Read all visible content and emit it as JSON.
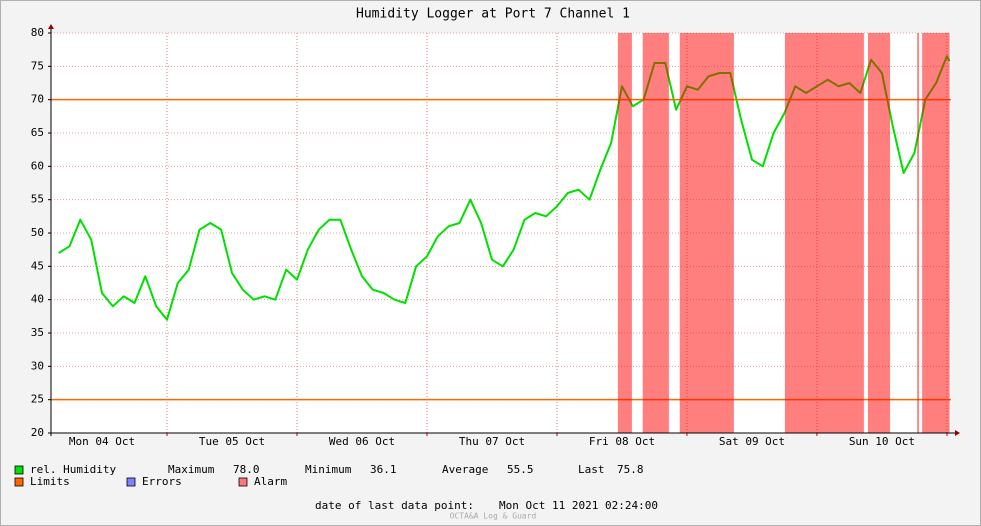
{
  "chart_data": {
    "type": "line",
    "title": "Humidity Logger at Port 7 Channel 1",
    "x": [
      "2021-10-04 04:00",
      "2021-10-04 06:00",
      "2021-10-04 08:00",
      "2021-10-04 10:00",
      "2021-10-04 12:00",
      "2021-10-04 14:00",
      "2021-10-04 16:00",
      "2021-10-04 18:00",
      "2021-10-04 20:00",
      "2021-10-04 22:00",
      "2021-10-05 00:00",
      "2021-10-05 02:00",
      "2021-10-05 04:00",
      "2021-10-05 06:00",
      "2021-10-05 08:00",
      "2021-10-05 10:00",
      "2021-10-05 12:00",
      "2021-10-05 14:00",
      "2021-10-05 16:00",
      "2021-10-05 18:00",
      "2021-10-05 20:00",
      "2021-10-05 22:00",
      "2021-10-06 00:00",
      "2021-10-06 02:00",
      "2021-10-06 04:00",
      "2021-10-06 06:00",
      "2021-10-06 08:00",
      "2021-10-06 10:00",
      "2021-10-06 12:00",
      "2021-10-06 14:00",
      "2021-10-06 16:00",
      "2021-10-06 18:00",
      "2021-10-06 20:00",
      "2021-10-06 22:00",
      "2021-10-07 00:00",
      "2021-10-07 02:00",
      "2021-10-07 04:00",
      "2021-10-07 06:00",
      "2021-10-07 08:00",
      "2021-10-07 10:00",
      "2021-10-07 12:00",
      "2021-10-07 14:00",
      "2021-10-07 16:00",
      "2021-10-07 18:00",
      "2021-10-07 20:00",
      "2021-10-07 22:00",
      "2021-10-08 00:00",
      "2021-10-08 02:00",
      "2021-10-08 04:00",
      "2021-10-08 06:00",
      "2021-10-08 08:00",
      "2021-10-08 10:00",
      "2021-10-08 12:00",
      "2021-10-08 14:00",
      "2021-10-08 16:00",
      "2021-10-08 18:00",
      "2021-10-08 20:00",
      "2021-10-08 22:00",
      "2021-10-09 00:00",
      "2021-10-09 02:00",
      "2021-10-09 04:00",
      "2021-10-09 06:00",
      "2021-10-09 08:00",
      "2021-10-09 10:00",
      "2021-10-09 12:00",
      "2021-10-09 14:00",
      "2021-10-09 16:00",
      "2021-10-09 18:00",
      "2021-10-09 20:00",
      "2021-10-09 22:00",
      "2021-10-10 00:00",
      "2021-10-10 02:00",
      "2021-10-10 04:00",
      "2021-10-10 06:00",
      "2021-10-10 08:00",
      "2021-10-10 10:00",
      "2021-10-10 12:00",
      "2021-10-10 14:00",
      "2021-10-10 16:00",
      "2021-10-10 18:00",
      "2021-10-10 20:00",
      "2021-10-10 22:00",
      "2021-10-11 00:00",
      "2021-10-11 00:30"
    ],
    "series": [
      {
        "name": "rel. Humidity",
        "color": "#00e000",
        "values": [
          47,
          48,
          52,
          49,
          41,
          39,
          40.5,
          39.5,
          43.5,
          39,
          37,
          42.5,
          44.5,
          50.5,
          51.5,
          50.5,
          44,
          41.5,
          40,
          40.5,
          40,
          44.5,
          43,
          47.5,
          50.5,
          52,
          52,
          47.5,
          43.5,
          41.5,
          41,
          40,
          39.5,
          45,
          46.5,
          49.5,
          51,
          51.5,
          55,
          51.5,
          46,
          45,
          47.5,
          52,
          53,
          52.5,
          54,
          56,
          56.5,
          55,
          59.5,
          63.5,
          72,
          69,
          70,
          75.5,
          75.5,
          68.5,
          72,
          71.5,
          73.5,
          74,
          74,
          67,
          61,
          60,
          65,
          68,
          72,
          71,
          72,
          73,
          72,
          72.5,
          71,
          76,
          74,
          66,
          59,
          62,
          70,
          72.5,
          76.5,
          75.8
        ]
      }
    ],
    "limits": {
      "name": "Limits",
      "color": "#ff6600",
      "values": [
        70,
        25
      ]
    },
    "errors": {
      "name": "Errors",
      "color": "#7f7fff"
    },
    "alarm": {
      "name": "Alarm",
      "color": "#ff0000",
      "spans": [
        [
          "2021-10-08 11:15",
          "2021-10-08 13:50"
        ],
        [
          "2021-10-08 15:50",
          "2021-10-08 20:40"
        ],
        [
          "2021-10-08 22:40",
          "2021-10-09 08:40"
        ],
        [
          "2021-10-09 18:05",
          "2021-10-10 08:40"
        ],
        [
          "2021-10-10 09:25",
          "2021-10-10 13:30"
        ],
        [
          "2021-10-10 18:30",
          "2021-10-10 18:50"
        ],
        [
          "2021-10-10 19:25",
          "2021-10-11 00:30"
        ]
      ]
    },
    "stats": [
      {
        "name": "Maximum",
        "value": 78,
        "label": "78.0"
      },
      {
        "name": "Minimum",
        "value": 36.1,
        "label": "36.1"
      },
      {
        "name": "Average",
        "value": 55.5,
        "label": "55.5"
      },
      {
        "name": "Last",
        "value": 75.8,
        "label": "75.8"
      }
    ],
    "footer_label": "date of last data point:",
    "footer_value": "Mon Oct 11 2021 02:24:00",
    "watermark": "OCTA&A Log & Guard",
    "xlim": [
      "2021-10-04 02:35",
      "2021-10-11 00:45"
    ],
    "xticks": [
      {
        "value": "2021-10-04 12:00",
        "label": "Mon 04 Oct"
      },
      {
        "value": "2021-10-05 12:00",
        "label": "Tue 05 Oct"
      },
      {
        "value": "2021-10-06 12:00",
        "label": "Wed 06 Oct"
      },
      {
        "value": "2021-10-07 12:00",
        "label": "Thu 07 Oct"
      },
      {
        "value": "2021-10-08 12:00",
        "label": "Fri 08 Oct"
      },
      {
        "value": "2021-10-09 12:00",
        "label": "Sat 09 Oct"
      },
      {
        "value": "2021-10-10 12:00",
        "label": "Sun 10 Oct"
      }
    ],
    "xgrid": [
      "2021-10-05 00:00",
      "2021-10-06 00:00",
      "2021-10-07 00:00",
      "2021-10-08 00:00",
      "2021-10-09 00:00",
      "2021-10-10 00:00",
      "2021-10-11 00:00"
    ],
    "ylim": [
      20,
      80
    ],
    "yticks": [
      20,
      25,
      30,
      35,
      40,
      45,
      50,
      55,
      60,
      65,
      70,
      75,
      80
    ],
    "grid": true
  }
}
